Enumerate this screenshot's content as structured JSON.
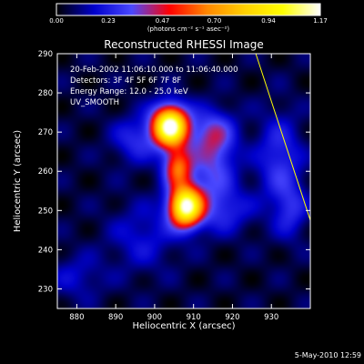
{
  "colorbar": {
    "tick_labels": [
      "0.00",
      "0.23",
      "0.47",
      "0.70",
      "0.94",
      "1.17"
    ],
    "range": [
      0,
      1.17
    ],
    "label": "(photons cm⁻² s⁻¹ asec⁻²)",
    "colors": [
      "#000000",
      "#0000cc",
      "#4a48ff",
      "#ff0000",
      "#ff8800",
      "#ffd000",
      "#ffff00",
      "#ffffff"
    ]
  },
  "chart_data": {
    "type": "heatmap",
    "title": "Reconstructed RHESSI Image",
    "xlabel": "Heliocentric X (arcsec)",
    "ylabel": "Heliocentric Y (arcsec)",
    "xlim": [
      875,
      940
    ],
    "ylim": [
      225,
      290
    ],
    "x_ticks": [
      880,
      890,
      900,
      910,
      920,
      930
    ],
    "y_ticks": [
      230,
      240,
      250,
      260,
      270,
      280,
      290
    ],
    "annotations": [
      "20-Feb-2002 11:06:10.000 to 11:06:40.000",
      "Detectors: 3F 4F 5F 6F 7F 8F",
      "Energy Range: 12.0 - 25.0 keV",
      "UV_SMOOTH"
    ],
    "sources": [
      {
        "x": 904,
        "y": 271.5,
        "peak": 1.17
      },
      {
        "x": 908,
        "y": 251,
        "peak": 1.1
      },
      {
        "x": 906,
        "y": 261,
        "peak": 0.55
      },
      {
        "x": 915,
        "y": 262,
        "peak": 0.28
      },
      {
        "x": 895,
        "y": 268,
        "peak": 0.2
      },
      {
        "x": 915,
        "y": 270,
        "peak": 0.22
      },
      {
        "x": 918,
        "y": 250,
        "peak": 0.18
      },
      {
        "x": 897,
        "y": 243,
        "peak": 0.14
      },
      {
        "x": 880,
        "y": 233,
        "peak": 0.12
      },
      {
        "x": 932,
        "y": 263,
        "peak": 0.22
      },
      {
        "x": 935,
        "y": 250,
        "peak": 0.18
      }
    ],
    "limb_line": {
      "x": [
        926,
        940
      ],
      "y": [
        291,
        247.5
      ]
    }
  },
  "footer": {
    "date": "5-May-2010 12:59"
  }
}
